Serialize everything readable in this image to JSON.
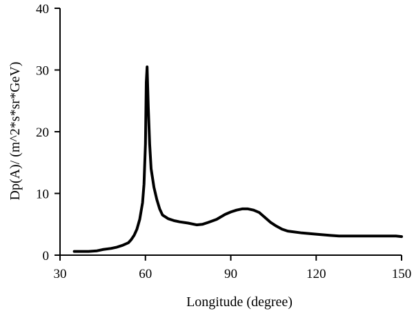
{
  "chart_data": {
    "type": "line",
    "title": "",
    "xlabel": "Longitude (degree)",
    "ylabel": "Dp(A)/ (m^2*s*sr*GeV)",
    "xlim": [
      30,
      150
    ],
    "ylim": [
      0,
      40
    ],
    "x_ticks": [
      30,
      60,
      90,
      120,
      150
    ],
    "y_ticks": [
      0,
      10,
      20,
      30,
      40
    ],
    "grid": false,
    "legend": "none",
    "line_color": "#000000",
    "series": [
      {
        "x": [
          35,
          40,
          43,
          45,
          48,
          50,
          52,
          54,
          55,
          56,
          57,
          58,
          59,
          59.5,
          60,
          60.3,
          60.6,
          61,
          61.5,
          62,
          63,
          64,
          65,
          66,
          68,
          70,
          72,
          75,
          78,
          80,
          82,
          85,
          88,
          90,
          92,
          94,
          96,
          98,
          100,
          102,
          104,
          106,
          108,
          110,
          115,
          120,
          125,
          128,
          135,
          140,
          145,
          148,
          150
        ],
        "y": [
          0.6,
          0.6,
          0.7,
          0.9,
          1.1,
          1.3,
          1.6,
          2.0,
          2.5,
          3.2,
          4.2,
          5.8,
          8.5,
          11.5,
          18,
          28,
          30.5,
          24,
          18,
          14,
          11,
          9,
          7.5,
          6.5,
          5.9,
          5.6,
          5.4,
          5.2,
          4.9,
          5.0,
          5.3,
          5.8,
          6.6,
          7.0,
          7.3,
          7.5,
          7.5,
          7.3,
          6.9,
          6.1,
          5.3,
          4.7,
          4.2,
          3.9,
          3.6,
          3.4,
          3.2,
          3.1,
          3.1,
          3.1,
          3.1,
          3.1,
          3.0
        ]
      }
    ]
  }
}
